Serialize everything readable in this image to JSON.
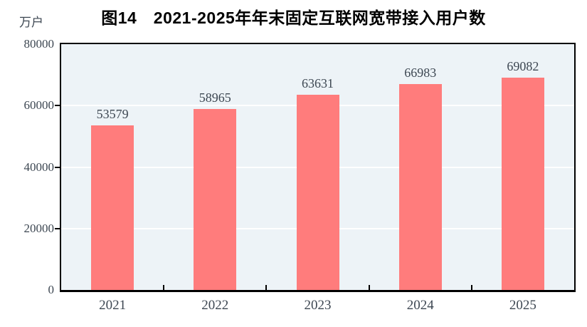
{
  "colors": {
    "bar": "#ff7c7c",
    "plot_background": "#edf3f7",
    "gridline": "#ffffff",
    "axis": "#000000",
    "title_text": "#000000",
    "tick_text": "#3d4752"
  },
  "chart_data": {
    "type": "bar",
    "title": "图14　2021-2025年年末固定互联网宽带接入用户数",
    "ylabel": "万户",
    "xlabel": "",
    "categories": [
      "2021",
      "2022",
      "2023",
      "2024",
      "2025"
    ],
    "values": [
      53579,
      58965,
      63631,
      66983,
      69082
    ],
    "ylim": [
      0,
      80000
    ],
    "yticks": [
      0,
      20000,
      40000,
      60000,
      80000
    ],
    "grid": true,
    "data_labels": true,
    "legend_position": "none"
  }
}
